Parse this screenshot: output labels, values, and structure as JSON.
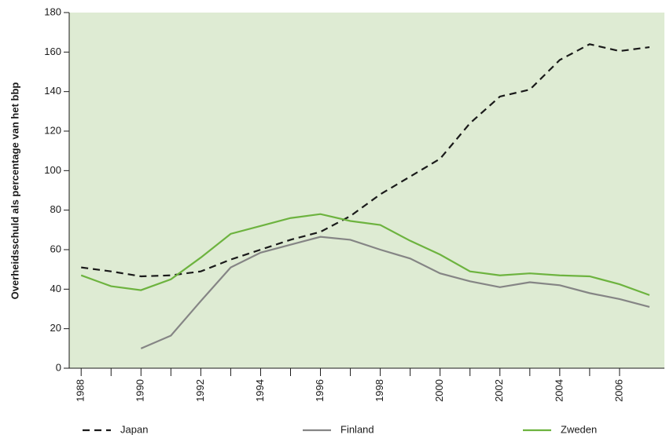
{
  "chart_data": {
    "type": "line",
    "ylabel": "Overheidsschuld als percentage van het bbp",
    "x": [
      1988,
      1989,
      1990,
      1991,
      1992,
      1993,
      1994,
      1995,
      1996,
      1997,
      1998,
      1999,
      2000,
      2001,
      2002,
      2003,
      2004,
      2005,
      2006,
      2007
    ],
    "series": [
      {
        "name": "Japan",
        "color": "#1a1a1a",
        "dash": true,
        "values": [
          51,
          49,
          46.5,
          47,
          49,
          55,
          60,
          65,
          69,
          77,
          88,
          97,
          106,
          124,
          137.5,
          141,
          156,
          164,
          160.5,
          162.5
        ]
      },
      {
        "name": "Finland",
        "color": "#858585",
        "dash": false,
        "values": [
          null,
          null,
          10,
          16.5,
          34,
          51,
          58.5,
          62.5,
          66.5,
          65,
          60,
          55.5,
          48,
          44,
          41,
          43.5,
          42,
          38,
          35,
          31
        ]
      },
      {
        "name": "Zweden",
        "color": "#6db33f",
        "dash": false,
        "values": [
          47,
          41.5,
          39.5,
          45,
          56,
          68,
          72,
          76,
          78,
          74.5,
          72.5,
          64.5,
          57.5,
          49,
          47,
          48,
          47,
          46.5,
          42.5,
          37
        ]
      }
    ],
    "xlim": [
      1987.6,
      2007.5
    ],
    "xticks": [
      1988,
      1990,
      1992,
      1994,
      1996,
      1998,
      2000,
      2002,
      2004,
      2006
    ],
    "ylim": [
      0,
      180
    ],
    "yticks": [
      0,
      20,
      40,
      60,
      80,
      100,
      120,
      140,
      160,
      180
    ],
    "plot_background": "#deebd3"
  }
}
